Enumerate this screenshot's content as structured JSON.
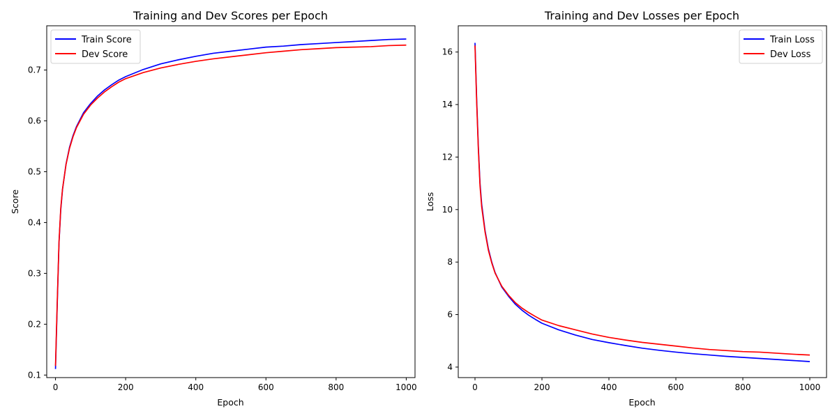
{
  "chart_data": [
    {
      "type": "line",
      "title": "Training and Dev Scores per Epoch",
      "xlabel": "Epoch",
      "ylabel": "Score",
      "xlim": [
        -25,
        1025
      ],
      "ylim": [
        0.095,
        0.787
      ],
      "xticks": [
        0,
        200,
        400,
        600,
        800,
        1000
      ],
      "xtick_labels": [
        "0",
        "200",
        "400",
        "600",
        "800",
        "1000"
      ],
      "yticks": [
        0.1,
        0.2,
        0.3,
        0.4,
        0.5,
        0.6,
        0.7
      ],
      "ytick_labels": [
        "0.1",
        "0.2",
        "0.3",
        "0.4",
        "0.5",
        "0.6",
        "0.7"
      ],
      "grid": false,
      "legend_position": "top-left",
      "x": [
        0,
        5,
        10,
        15,
        20,
        30,
        40,
        50,
        60,
        80,
        100,
        120,
        140,
        160,
        180,
        200,
        250,
        300,
        350,
        400,
        450,
        500,
        550,
        600,
        650,
        700,
        750,
        800,
        850,
        900,
        950,
        1000
      ],
      "series": [
        {
          "name": "Train Score",
          "color": "#0000ff",
          "values": [
            0.112,
            0.24,
            0.36,
            0.425,
            0.465,
            0.515,
            0.548,
            0.571,
            0.589,
            0.616,
            0.634,
            0.649,
            0.661,
            0.671,
            0.68,
            0.687,
            0.701,
            0.712,
            0.72,
            0.727,
            0.733,
            0.737,
            0.741,
            0.745,
            0.747,
            0.75,
            0.752,
            0.754,
            0.756,
            0.758,
            0.76,
            0.761
          ]
        },
        {
          "name": "Dev Score",
          "color": "#ff0000",
          "values": [
            0.118,
            0.245,
            0.362,
            0.428,
            0.466,
            0.514,
            0.546,
            0.569,
            0.587,
            0.613,
            0.631,
            0.645,
            0.657,
            0.667,
            0.676,
            0.683,
            0.695,
            0.704,
            0.711,
            0.717,
            0.722,
            0.726,
            0.73,
            0.734,
            0.737,
            0.74,
            0.742,
            0.744,
            0.745,
            0.746,
            0.748,
            0.749
          ]
        }
      ]
    },
    {
      "type": "line",
      "title": "Training and Dev Losses per Epoch",
      "xlabel": "Epoch",
      "ylabel": "Loss",
      "xlim": [
        -50,
        1050
      ],
      "ylim": [
        3.6,
        17.0
      ],
      "xticks": [
        0,
        200,
        400,
        600,
        800,
        1000
      ],
      "xtick_labels": [
        "0",
        "200",
        "400",
        "600",
        "800",
        "1000"
      ],
      "yticks": [
        4,
        6,
        8,
        10,
        12,
        14,
        16
      ],
      "ytick_labels": [
        "4",
        "6",
        "8",
        "10",
        "12",
        "14",
        "16"
      ],
      "grid": false,
      "legend_position": "top-right",
      "x": [
        0,
        5,
        10,
        15,
        20,
        30,
        40,
        50,
        60,
        80,
        100,
        120,
        140,
        160,
        180,
        200,
        250,
        300,
        350,
        400,
        450,
        500,
        550,
        600,
        650,
        700,
        750,
        800,
        850,
        900,
        950,
        1000
      ],
      "series": [
        {
          "name": "Train Loss",
          "color": "#0000ff",
          "values": [
            16.35,
            14.2,
            12.4,
            11.0,
            10.2,
            9.2,
            8.5,
            8.0,
            7.6,
            7.05,
            6.7,
            6.4,
            6.17,
            5.98,
            5.82,
            5.67,
            5.42,
            5.22,
            5.05,
            4.93,
            4.82,
            4.72,
            4.64,
            4.57,
            4.51,
            4.46,
            4.41,
            4.37,
            4.33,
            4.29,
            4.25,
            4.21
          ]
        },
        {
          "name": "Dev Loss",
          "color": "#ff0000",
          "values": [
            16.25,
            14.1,
            12.3,
            10.9,
            10.1,
            9.15,
            8.45,
            7.97,
            7.58,
            7.08,
            6.74,
            6.46,
            6.25,
            6.08,
            5.93,
            5.79,
            5.58,
            5.42,
            5.26,
            5.13,
            5.03,
            4.94,
            4.87,
            4.8,
            4.73,
            4.67,
            4.63,
            4.59,
            4.57,
            4.53,
            4.49,
            4.46
          ]
        }
      ]
    }
  ]
}
